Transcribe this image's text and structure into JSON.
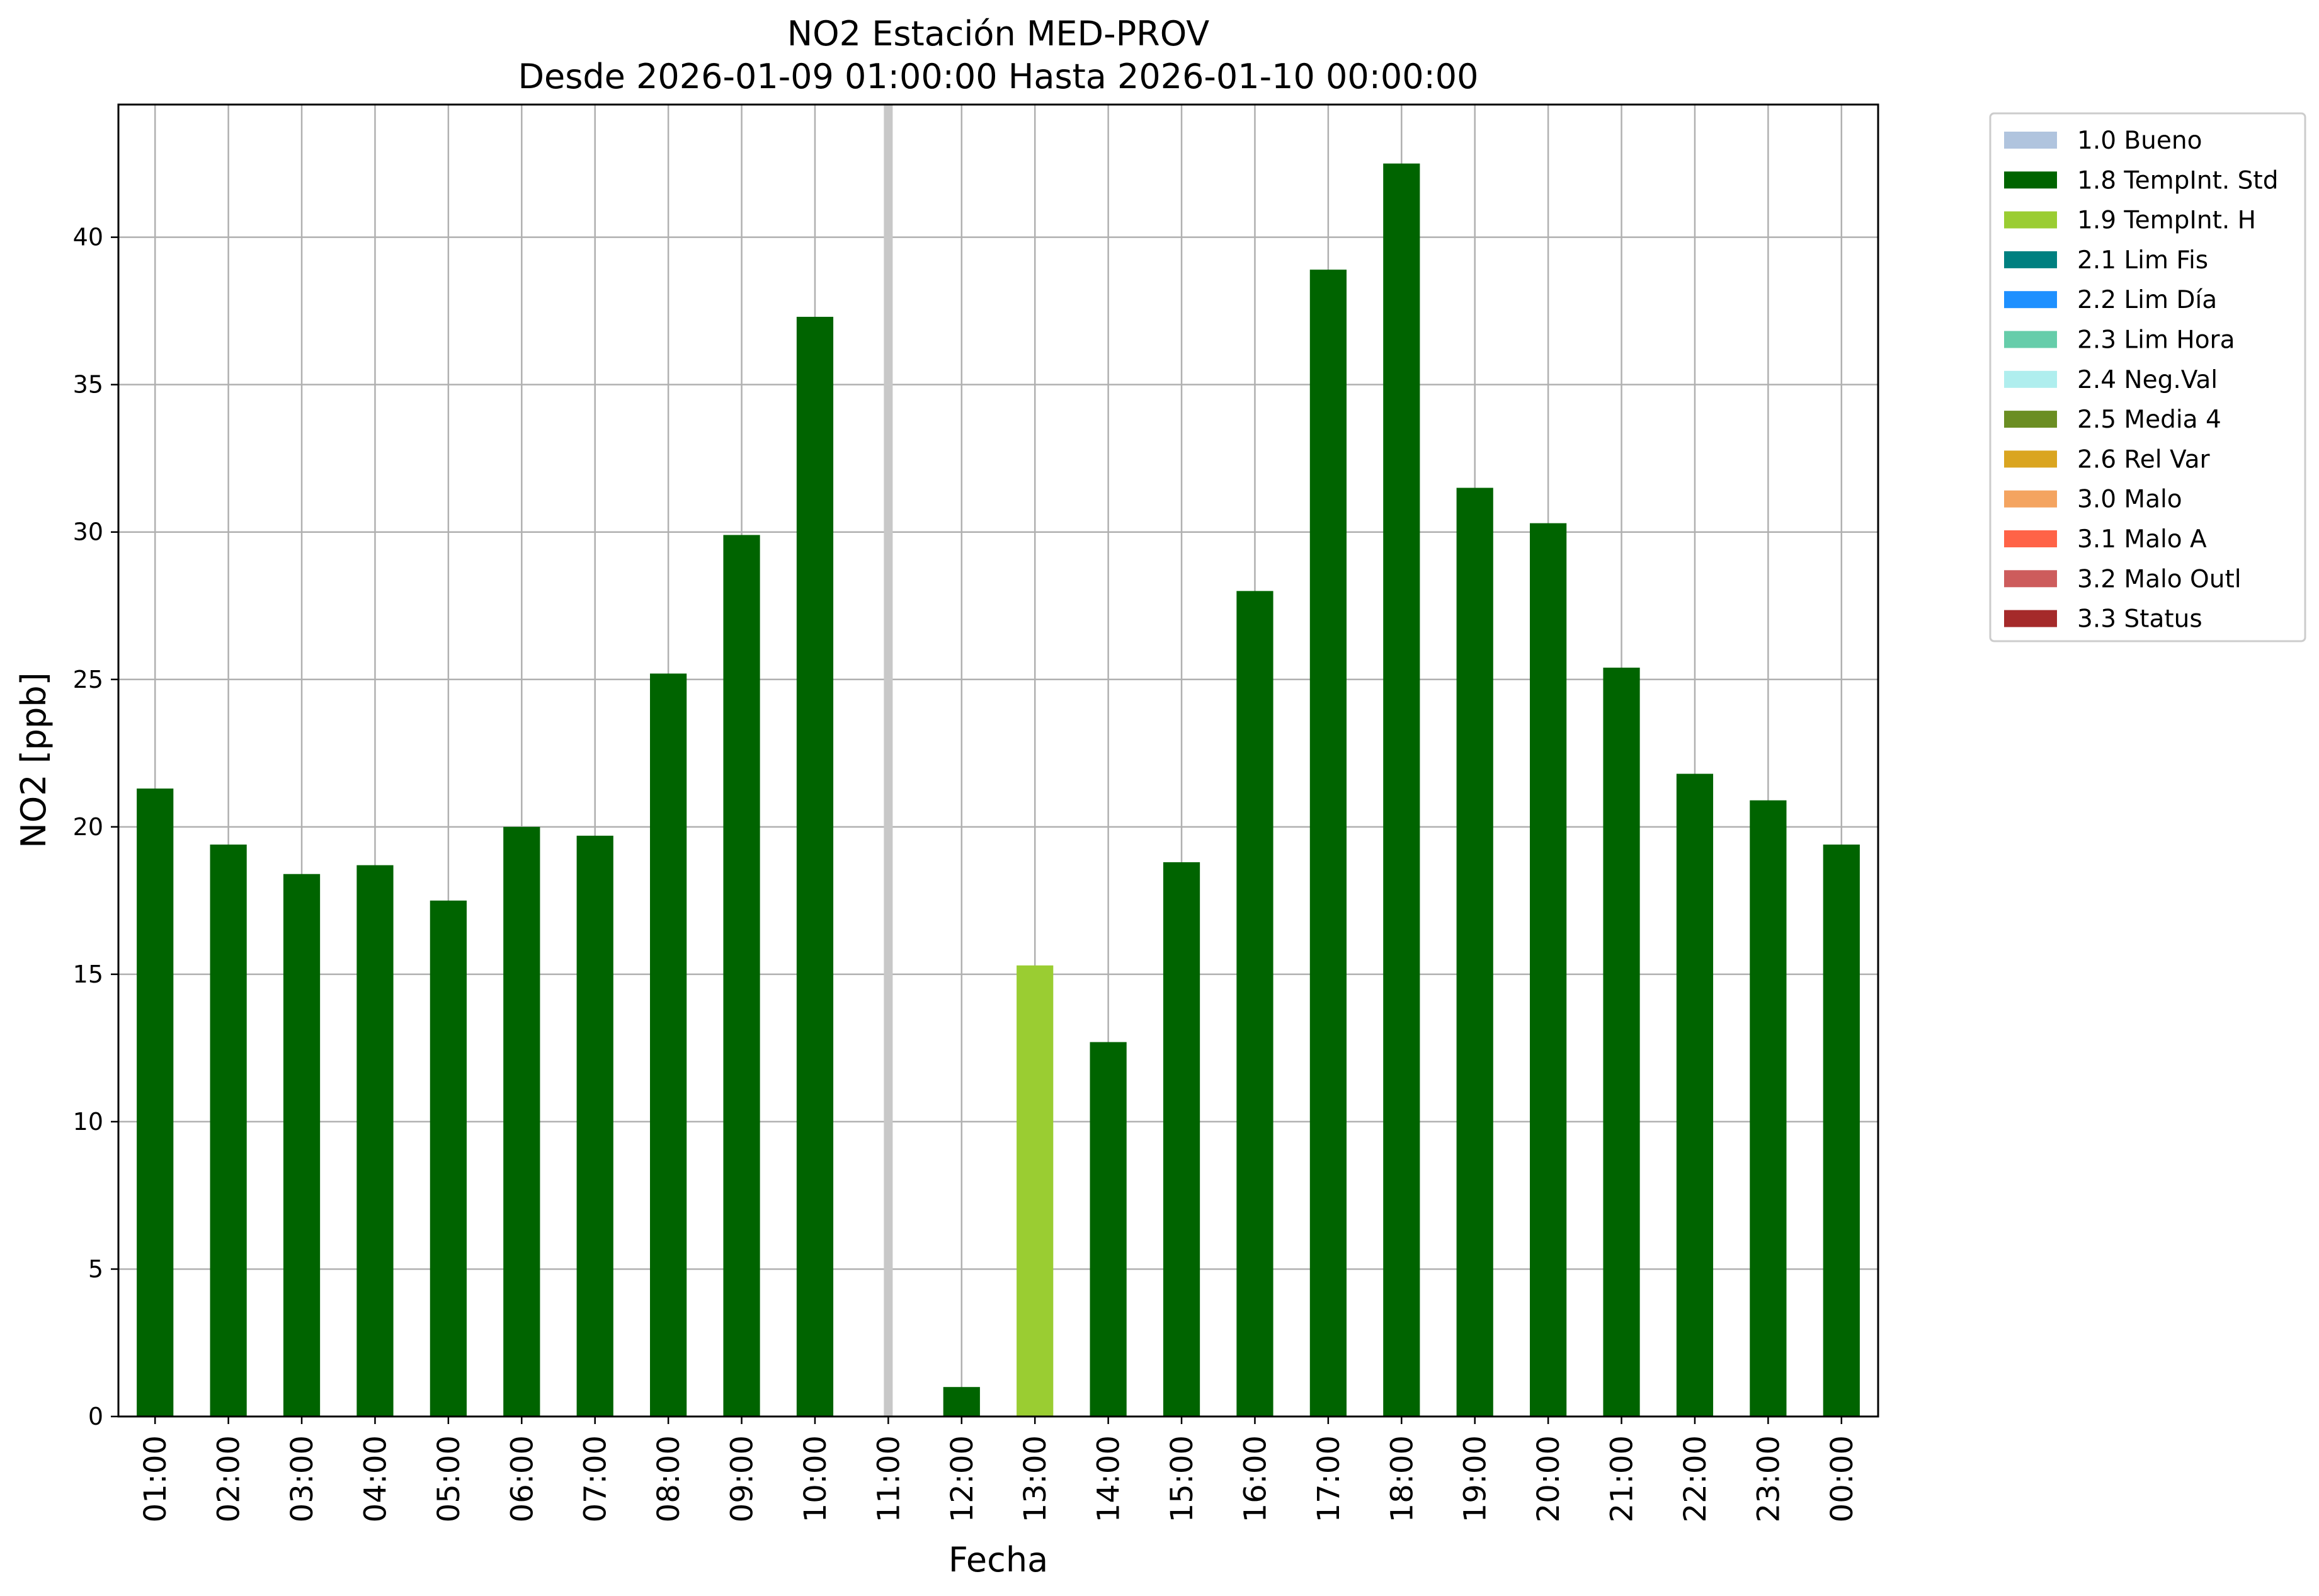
{
  "chart_data": {
    "type": "bar",
    "title": "NO2 Estación MED-PROV",
    "subtitle": "Desde 2026-01-09 01:00:00 Hasta 2026-01-10 00:00:00",
    "xlabel": "Fecha",
    "ylabel": "NO2 [ppb]",
    "ylim": [
      0,
      44.5
    ],
    "yticks": [
      0,
      5,
      10,
      15,
      20,
      25,
      30,
      35,
      40
    ],
    "grid": true,
    "legend_position": "outside-top-right",
    "categories": [
      "01:00",
      "02:00",
      "03:00",
      "04:00",
      "05:00",
      "06:00",
      "07:00",
      "08:00",
      "09:00",
      "10:00",
      "11:00",
      "12:00",
      "13:00",
      "14:00",
      "15:00",
      "16:00",
      "17:00",
      "18:00",
      "19:00",
      "20:00",
      "21:00",
      "22:00",
      "23:00",
      "00:00"
    ],
    "values": [
      21.3,
      19.4,
      18.4,
      18.7,
      17.5,
      20.0,
      19.7,
      25.2,
      29.9,
      37.3,
      null,
      1.0,
      15.3,
      12.7,
      18.8,
      28.0,
      38.9,
      42.5,
      31.5,
      30.3,
      25.4,
      21.8,
      20.9,
      19.4
    ],
    "bar_flags": [
      "1.8 TempInt. Std",
      "1.8 TempInt. Std",
      "1.8 TempInt. Std",
      "1.8 TempInt. Std",
      "1.8 TempInt. Std",
      "1.8 TempInt. Std",
      "1.8 TempInt. Std",
      "1.8 TempInt. Std",
      "1.8 TempInt. Std",
      "1.8 TempInt. Std",
      "",
      "1.8 TempInt. Std",
      "1.9 TempInt. H",
      "1.8 TempInt. Std",
      "1.8 TempInt. Std",
      "1.8 TempInt. Std",
      "1.8 TempInt. Std",
      "1.8 TempInt. Std",
      "1.8 TempInt. Std",
      "1.8 TempInt. Std",
      "1.8 TempInt. Std",
      "1.8 TempInt. Std",
      "1.8 TempInt. Std",
      "1.8 TempInt. Std"
    ],
    "missing_marker": {
      "category": "11:00",
      "color": "#c8c8c8"
    },
    "legend": [
      {
        "label": "1.0 Bueno",
        "color": "#b0c4de"
      },
      {
        "label": "1.8 TempInt. Std",
        "color": "#006400"
      },
      {
        "label": "1.9 TempInt. H",
        "color": "#9acd32"
      },
      {
        "label": "2.1 Lim Fis",
        "color": "#008080"
      },
      {
        "label": "2.2 Lim Día",
        "color": "#1e90ff"
      },
      {
        "label": "2.3 Lim Hora",
        "color": "#66cdaa"
      },
      {
        "label": "2.4 Neg.Val",
        "color": "#afeeee"
      },
      {
        "label": "2.5 Media 4",
        "color": "#6b8e23"
      },
      {
        "label": "2.6 Rel Var",
        "color": "#daa520"
      },
      {
        "label": "3.0 Malo",
        "color": "#f4a460"
      },
      {
        "label": "3.1 Malo A",
        "color": "#ff6347"
      },
      {
        "label": "3.2 Malo Outl",
        "color": "#cd5c5c"
      },
      {
        "label": "3.3 Status",
        "color": "#a52a2a"
      }
    ]
  }
}
